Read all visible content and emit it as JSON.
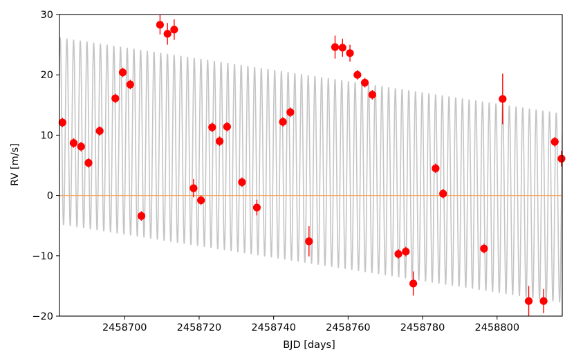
{
  "chart_data": {
    "type": "scatter",
    "xlabel": "BJD [days]",
    "ylabel": "RV [m/s]",
    "xlim": [
      2458682.5,
      2458817.5
    ],
    "ylim": [
      -20,
      30
    ],
    "xticks": [
      2458700,
      2458720,
      2458740,
      2458760,
      2458780,
      2458800
    ],
    "xtick_labels": [
      "2458700",
      "2458720",
      "2458740",
      "2458760",
      "2458780",
      "2458800"
    ],
    "yticks": [
      -20,
      -10,
      0,
      10,
      20,
      30
    ],
    "ytick_labels": [
      "−20",
      "−10",
      "0",
      "10",
      "20",
      "30"
    ],
    "grid": false,
    "series": [
      {
        "kind": "points",
        "color": "#ff0000",
        "x": [
          2458683.3,
          2458686.3,
          2458688.3,
          2458690.3,
          2458693.3,
          2458697.5,
          2458699.5,
          2458701.5,
          2458704.5,
          2458709.5,
          2458711.5,
          2458713.3,
          2458718.5,
          2458720.5,
          2458723.5,
          2458725.5,
          2458727.5,
          2458731.5,
          2458735.5,
          2458742.5,
          2458744.5,
          2458749.5,
          2458756.5,
          2458758.5,
          2458760.5,
          2458762.5,
          2458764.5,
          2458766.5,
          2458773.5,
          2458775.5,
          2458777.5,
          2458783.5,
          2458785.5,
          2458796.5,
          2458801.5,
          2458808.5,
          2458812.5,
          2458815.5,
          2458817.3
        ],
        "y": [
          12.1,
          8.7,
          8.1,
          5.4,
          10.7,
          16.1,
          20.4,
          18.4,
          -3.4,
          28.3,
          26.8,
          27.5,
          1.2,
          -0.8,
          11.3,
          9.0,
          11.4,
          2.2,
          -2.0,
          12.2,
          13.8,
          -7.6,
          24.6,
          24.5,
          23.6,
          20.0,
          18.7,
          16.7,
          -9.7,
          -9.3,
          -14.6,
          4.5,
          0.3,
          -8.8,
          16.0,
          -17.5,
          -17.5,
          8.9,
          6.1
        ],
        "yerr": [
          0.8,
          0.8,
          0.8,
          0.8,
          0.8,
          0.8,
          0.8,
          0.8,
          0.8,
          1.6,
          1.8,
          1.7,
          1.5,
          0.8,
          0.8,
          0.8,
          0.8,
          0.8,
          1.3,
          0.8,
          0.8,
          2.5,
          1.9,
          1.5,
          1.4,
          0.8,
          0.8,
          0.8,
          0.8,
          0.8,
          2.0,
          0.8,
          0.8,
          0.8,
          4.2,
          2.5,
          2.0,
          0.8,
          1.3
        ]
      },
      {
        "kind": "model-band",
        "color": "#bbbbbb",
        "x_start": 2458682.5,
        "x_end": 2458817.5,
        "period_days": 1.8,
        "upper_start": 26.2,
        "upper_end": 13.6,
        "lower_start": -4.8,
        "lower_end": -17.8
      },
      {
        "kind": "hline",
        "color": "#f5a55a",
        "y": 0
      }
    ]
  }
}
